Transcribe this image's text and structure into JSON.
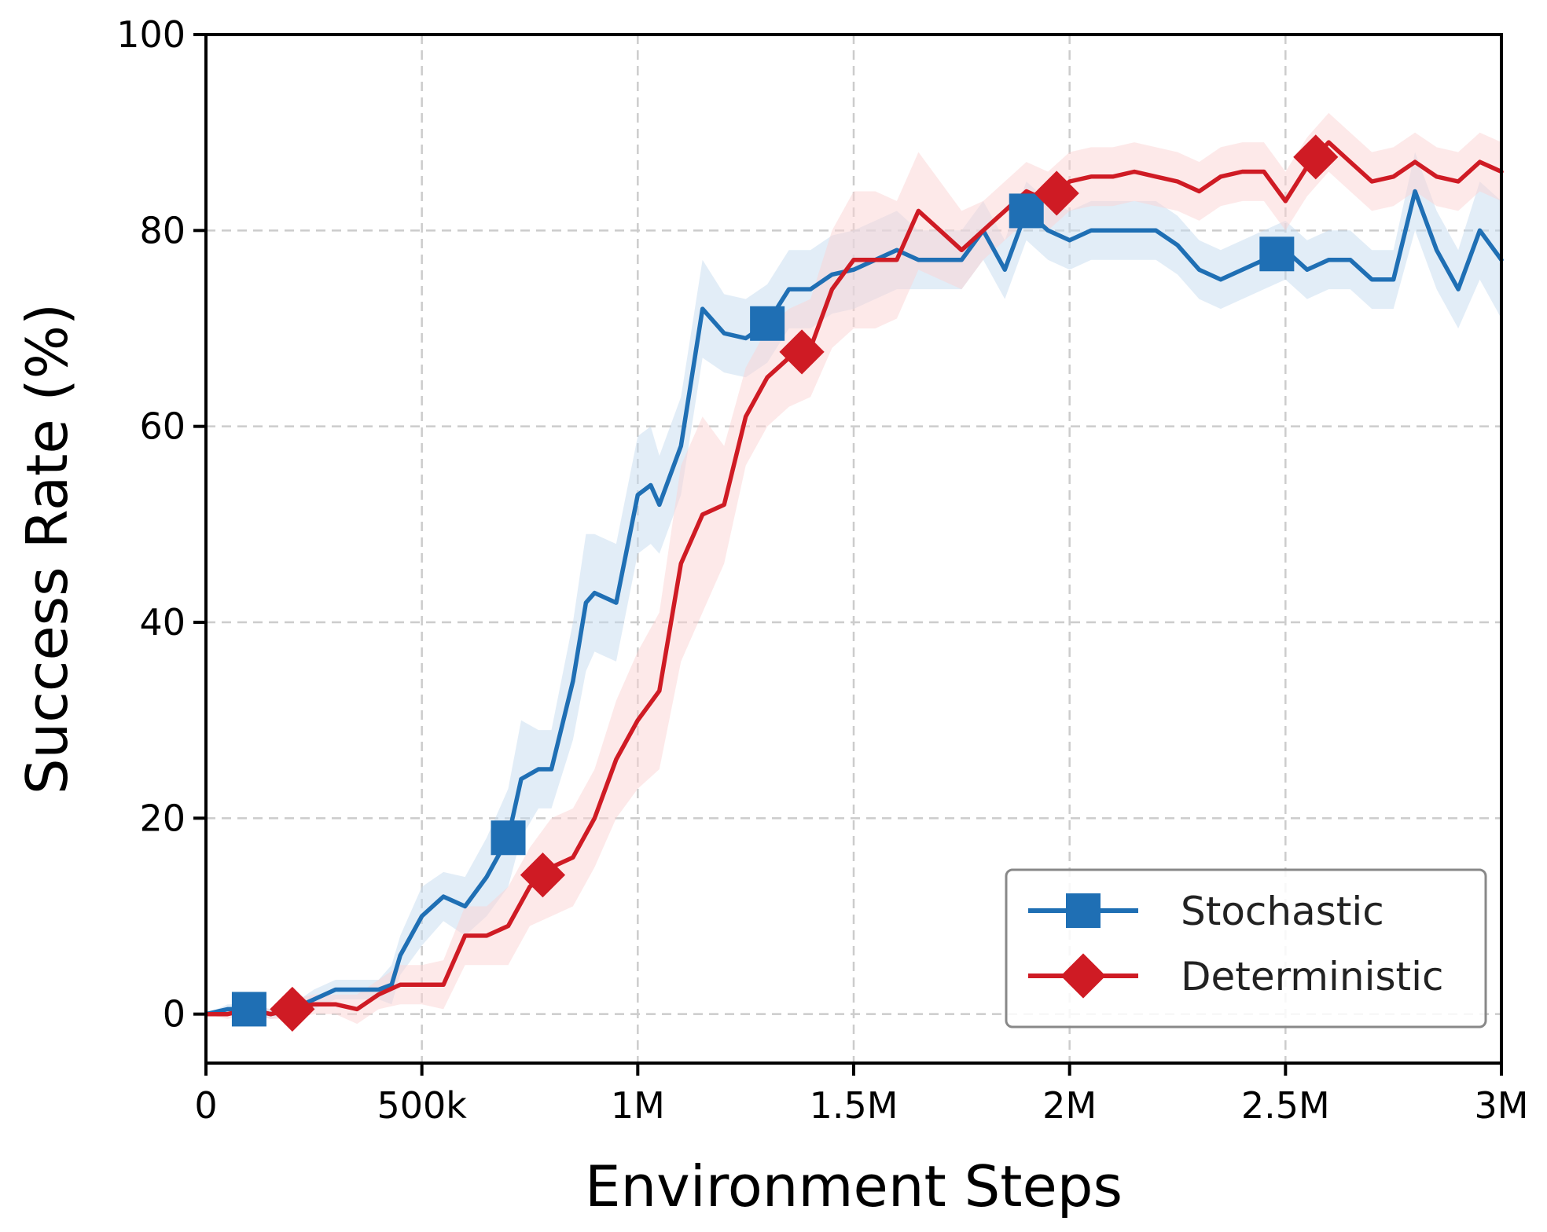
{
  "chart_data": {
    "type": "line",
    "xlabel": "Environment Steps",
    "ylabel": "Success Rate (%)",
    "xlim": [
      0,
      3000000
    ],
    "ylim": [
      -5,
      100
    ],
    "x_ticks": [
      {
        "value": 0,
        "label": "0"
      },
      {
        "value": 500000,
        "label": "500k"
      },
      {
        "value": 1000000,
        "label": "1M"
      },
      {
        "value": 1500000,
        "label": "1.5M"
      },
      {
        "value": 2000000,
        "label": "2M"
      },
      {
        "value": 2500000,
        "label": "2.5M"
      },
      {
        "value": 3000000,
        "label": "3M"
      }
    ],
    "y_ticks": [
      {
        "value": 0,
        "label": "0"
      },
      {
        "value": 20,
        "label": "20"
      },
      {
        "value": 40,
        "label": "40"
      },
      {
        "value": 60,
        "label": "60"
      },
      {
        "value": 80,
        "label": "80"
      },
      {
        "value": 100,
        "label": "100"
      }
    ],
    "grid": true,
    "legend_position": "lower-right",
    "series": [
      {
        "name": "Stochastic",
        "color": "#1f6fb4",
        "band_color": "#c6dbef",
        "marker": "square",
        "x": [
          0,
          50000,
          100000,
          150000,
          200000,
          250000,
          300000,
          350000,
          400000,
          430000,
          450000,
          500000,
          550000,
          600000,
          650000,
          700000,
          730000,
          770000,
          800000,
          850000,
          880000,
          900000,
          950000,
          1000000,
          1030000,
          1050000,
          1100000,
          1150000,
          1200000,
          1250000,
          1300000,
          1350000,
          1400000,
          1450000,
          1500000,
          1550000,
          1600000,
          1650000,
          1700000,
          1750000,
          1800000,
          1850000,
          1900000,
          1950000,
          2000000,
          2050000,
          2100000,
          2150000,
          2200000,
          2250000,
          2300000,
          2350000,
          2400000,
          2450000,
          2500000,
          2550000,
          2600000,
          2650000,
          2700000,
          2750000,
          2800000,
          2850000,
          2900000,
          2950000,
          3000000
        ],
        "y": [
          0,
          0.5,
          0.5,
          0,
          0.5,
          1.5,
          2.5,
          2.5,
          2.5,
          3,
          6,
          10,
          12,
          11,
          14,
          18,
          24,
          25,
          25,
          34,
          42,
          43,
          42,
          53,
          54,
          52,
          58,
          72,
          69.5,
          69,
          70.5,
          74,
          74,
          75.5,
          76,
          77,
          78,
          77,
          77,
          77,
          80,
          76,
          82,
          80,
          79,
          80,
          80,
          80,
          80,
          78.5,
          76,
          75,
          76,
          77,
          78,
          76,
          77,
          77,
          75,
          75,
          84,
          78,
          74,
          80,
          77
        ],
        "band": [
          0,
          0.5,
          0.5,
          0.5,
          0.5,
          1,
          1,
          1,
          1,
          2,
          2,
          3,
          2.5,
          3,
          4,
          5,
          6,
          4,
          4,
          6,
          7,
          6,
          6,
          6,
          6,
          5,
          5,
          5,
          4,
          4,
          4,
          4,
          4,
          4,
          4,
          4,
          4,
          3,
          3,
          3,
          3,
          3,
          3,
          3,
          3,
          3,
          3,
          3,
          3,
          3,
          3,
          3,
          3,
          3,
          3,
          3,
          3,
          3,
          3,
          3,
          4,
          4,
          4,
          5,
          6
        ],
        "marker_x": [
          100000,
          700000,
          1300000,
          1900000,
          2480000
        ]
      },
      {
        "name": "Deterministic",
        "color": "#cf1b24",
        "band_color": "#fbd3d3",
        "marker": "diamond",
        "x": [
          0,
          50000,
          100000,
          150000,
          200000,
          250000,
          300000,
          350000,
          400000,
          450000,
          500000,
          550000,
          600000,
          650000,
          700000,
          750000,
          800000,
          850000,
          900000,
          950000,
          1000000,
          1050000,
          1100000,
          1150000,
          1200000,
          1250000,
          1300000,
          1350000,
          1400000,
          1450000,
          1500000,
          1550000,
          1600000,
          1650000,
          1700000,
          1750000,
          1800000,
          1850000,
          1900000,
          1950000,
          2000000,
          2050000,
          2100000,
          2150000,
          2200000,
          2250000,
          2300000,
          2350000,
          2400000,
          2450000,
          2500000,
          2550000,
          2600000,
          2650000,
          2700000,
          2750000,
          2800000,
          2850000,
          2900000,
          2950000,
          3000000
        ],
        "y": [
          0,
          0,
          0.5,
          0,
          0.5,
          1,
          1,
          0.5,
          2,
          3,
          3,
          3,
          8,
          8,
          9,
          13,
          15,
          16,
          20,
          26,
          30,
          33,
          46,
          51,
          52,
          61,
          65,
          67,
          68,
          74,
          77,
          77,
          77,
          82,
          80,
          78,
          80,
          82,
          84,
          83,
          85,
          85.5,
          85.5,
          86,
          85.5,
          85,
          84,
          85.5,
          86,
          86,
          83,
          86.5,
          89,
          87,
          85,
          85.5,
          87,
          85.5,
          85,
          87,
          86
        ],
        "band": [
          0,
          0.5,
          0.5,
          0.5,
          1,
          1,
          1,
          1.5,
          1.5,
          2,
          2,
          2.5,
          3,
          3,
          4,
          4,
          5,
          5,
          5,
          6,
          7,
          8,
          10,
          10,
          6,
          5,
          5,
          5,
          5,
          6,
          7,
          7,
          6,
          6,
          5,
          4,
          3,
          3,
          3,
          3,
          3,
          3,
          3,
          3,
          3,
          3,
          3,
          3,
          3,
          3,
          3,
          3,
          3,
          3,
          3,
          3,
          3,
          3,
          3,
          3,
          3
        ],
        "marker_x": [
          200000,
          780000,
          1380000,
          1970000,
          2570000
        ]
      }
    ]
  }
}
